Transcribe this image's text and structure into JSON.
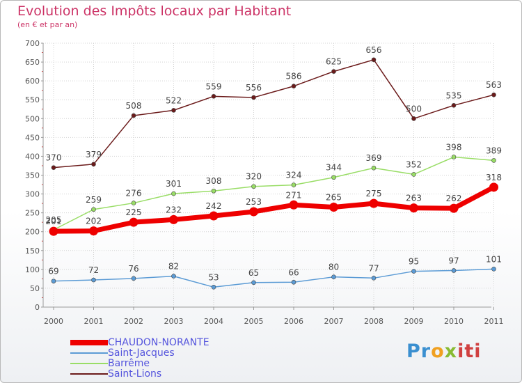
{
  "colors": {
    "title": "#cc3366",
    "chaudon": "#ee0000",
    "saint_jacques": "#5b9bd5",
    "barreme": "#99dd66",
    "saint_lions": "#6b1a1a",
    "legend_text": "#5555dd"
  },
  "chart_data": {
    "type": "line",
    "title": "Evolution des Impôts locaux par Habitant",
    "subtitle": "(en € et par an)",
    "xlabel": "",
    "ylabel": "",
    "ylim": [
      0,
      700
    ],
    "yticks": [
      0,
      50,
      100,
      150,
      200,
      250,
      300,
      350,
      400,
      450,
      500,
      550,
      600,
      650,
      700
    ],
    "categories": [
      "2000",
      "2001",
      "2002",
      "2003",
      "2004",
      "2005",
      "2006",
      "2007",
      "2008",
      "2009",
      "2010",
      "2011"
    ],
    "series": [
      {
        "name": "Saint-Lions",
        "values": [
          370,
          379,
          508,
          522,
          559,
          556,
          586,
          625,
          656,
          500,
          535,
          563
        ]
      },
      {
        "name": "Barrême",
        "values": [
          205,
          259,
          276,
          301,
          308,
          320,
          324,
          344,
          369,
          352,
          398,
          389
        ]
      },
      {
        "name": "Saint-Jacques",
        "values": [
          69,
          72,
          76,
          82,
          53,
          65,
          66,
          80,
          77,
          95,
          97,
          101
        ]
      },
      {
        "name": "CHAUDON-NORANTE",
        "values": [
          201,
          202,
          225,
          232,
          242,
          253,
          271,
          265,
          275,
          263,
          262,
          318
        ]
      }
    ],
    "legend": [
      "CHAUDON-NORANTE",
      "Saint-Jacques",
      "Barrême",
      "Saint-Lions"
    ],
    "legend_position": "bottom-left",
    "grid": true
  },
  "logo": {
    "parts": [
      "Pr",
      "o",
      "x",
      "iti"
    ]
  }
}
